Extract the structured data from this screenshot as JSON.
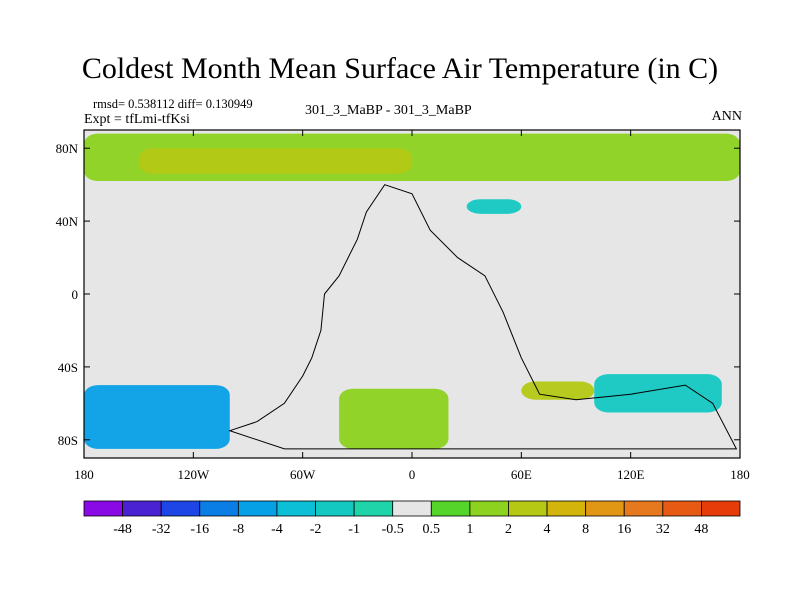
{
  "chart_data": {
    "type": "heatmap",
    "title": "Coldest Month Mean Surface Air Temperature (in C)",
    "stats_line": "rmsd= 0.538112 diff= 0.130949",
    "expt_line": "Expt = tfLmi-tfKsi",
    "case_label": "301_3_MaBP - 301_3_MaBP",
    "season_label": "ANN",
    "x_axis": {
      "range": [
        -180,
        180
      ],
      "tick_values": [
        -180,
        -120,
        -60,
        0,
        60,
        120,
        180
      ],
      "tick_labels": [
        "180",
        "120W",
        "60W",
        "0",
        "60E",
        "120E",
        "180"
      ]
    },
    "y_axis": {
      "range": [
        -90,
        90
      ],
      "tick_values": [
        80,
        40,
        0,
        -40,
        -80
      ],
      "tick_labels": [
        "80N",
        "40N",
        "0",
        "40S",
        "80S"
      ]
    },
    "colorbar": {
      "labels": [
        "-48",
        "-32",
        "-16",
        "-8",
        "-4",
        "-2",
        "-1",
        "-0.5",
        "0.5",
        "1",
        "2",
        "4",
        "8",
        "16",
        "32",
        "48"
      ],
      "colors": [
        "#8a0ae6",
        "#4b22d2",
        "#1e46e6",
        "#0b7ee6",
        "#06a0e6",
        "#0cbfd6",
        "#14c8c2",
        "#1ed4a8",
        "#e6e6e6",
        "#55d42a",
        "#8cd21e",
        "#b4c814",
        "#d2b40a",
        "#e19614",
        "#e6781e",
        "#e65a14",
        "#e63c0a"
      ]
    },
    "zero_band_color": "#e6e6e6",
    "regions": [
      {
        "name": "arctic-warm-band",
        "color": "#8cd21e",
        "lon": [
          -180,
          180
        ],
        "lat": [
          62,
          88
        ]
      },
      {
        "name": "arctic-core",
        "color": "#b4c814",
        "lon": [
          -150,
          0
        ],
        "lat": [
          66,
          80
        ]
      },
      {
        "name": "north-atlantic-cool",
        "color": "#14c8c2",
        "lon": [
          30,
          60
        ],
        "lat": [
          44,
          52
        ]
      },
      {
        "name": "southern-pacific-cool",
        "color": "#06a0e6",
        "lon": [
          -180,
          -100
        ],
        "lat": [
          -85,
          -50
        ]
      },
      {
        "name": "southern-atlantic-warm",
        "color": "#8cd21e",
        "lon": [
          -40,
          20
        ],
        "lat": [
          -85,
          -52
        ]
      },
      {
        "name": "southern-indian-warm",
        "color": "#b4c814",
        "lon": [
          60,
          100
        ],
        "lat": [
          -58,
          -48
        ]
      },
      {
        "name": "southern-indian-cool",
        "color": "#14c8c2",
        "lon": [
          100,
          170
        ],
        "lat": [
          -65,
          -44
        ]
      }
    ],
    "coastline_points": [
      [
        -100,
        -75
      ],
      [
        -85,
        -70
      ],
      [
        -70,
        -60
      ],
      [
        -60,
        -45
      ],
      [
        -55,
        -35
      ],
      [
        -50,
        -20
      ],
      [
        -48,
        0
      ],
      [
        -40,
        10
      ],
      [
        -30,
        30
      ],
      [
        -25,
        45
      ],
      [
        -15,
        60
      ],
      [
        0,
        55
      ],
      [
        10,
        35
      ],
      [
        25,
        20
      ],
      [
        40,
        10
      ],
      [
        50,
        -10
      ],
      [
        60,
        -35
      ],
      [
        70,
        -55
      ],
      [
        90,
        -58
      ],
      [
        120,
        -55
      ],
      [
        150,
        -50
      ],
      [
        165,
        -60
      ],
      [
        178,
        -85
      ],
      [
        -70,
        -85
      ],
      [
        -100,
        -75
      ]
    ]
  }
}
